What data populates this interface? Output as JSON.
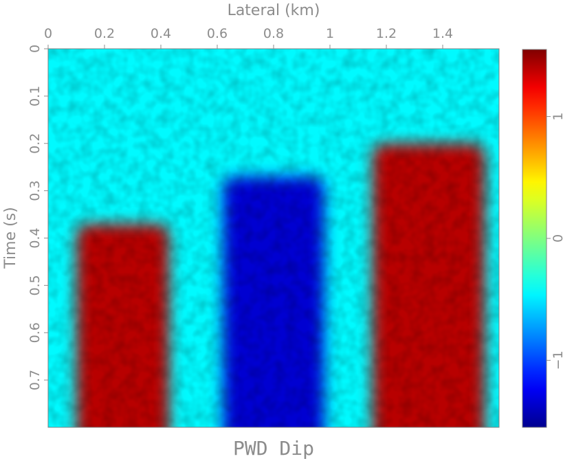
{
  "chart_data": {
    "type": "heatmap",
    "title": "PWD Dip",
    "xlabel": "Lateral (km)",
    "ylabel": "Time (s)",
    "xlim": [
      0,
      1.6
    ],
    "ylim": [
      0.8,
      0
    ],
    "x_ticks": [
      0,
      0.2,
      0.4,
      0.6,
      0.8,
      1,
      1.2,
      1.4
    ],
    "x_tick_labels": [
      "0",
      "0.2",
      "0.4",
      "0.6",
      "0.8",
      "1",
      "1.2",
      "1.4"
    ],
    "y_ticks": [
      0,
      0.1,
      0.2,
      0.3,
      0.4,
      0.5,
      0.6,
      0.7
    ],
    "y_tick_labels": [
      "0",
      "0.1",
      "0.2",
      "0.3",
      "0.4",
      "0.5",
      "0.6",
      "0.7"
    ],
    "x_axis_position": "top",
    "colormap": "jet",
    "colorbar": {
      "range": [
        -1.55,
        1.55
      ],
      "ticks": [
        -1,
        0,
        1
      ],
      "tick_labels": [
        "−1",
        "0",
        "1"
      ],
      "position": "right"
    },
    "background_value": -0.45,
    "regions": [
      {
        "label_value": 1.4,
        "x_range": [
          0.1,
          0.43
        ],
        "y_top": 0.37,
        "y_bottom": 0.8
      },
      {
        "label_value": -1.35,
        "x_range": [
          0.62,
          0.98
        ],
        "y_top": 0.27,
        "y_bottom": 0.8
      },
      {
        "label_value": 1.4,
        "x_range": [
          1.15,
          1.55
        ],
        "y_top": 0.2,
        "y_bottom": 0.8
      }
    ],
    "grid": false
  },
  "colors": {
    "text": "#8c8c8c",
    "jet": [
      "#00008f",
      "#0000ff",
      "#00ffff",
      "#ffff00",
      "#ff0000",
      "#800000"
    ]
  }
}
